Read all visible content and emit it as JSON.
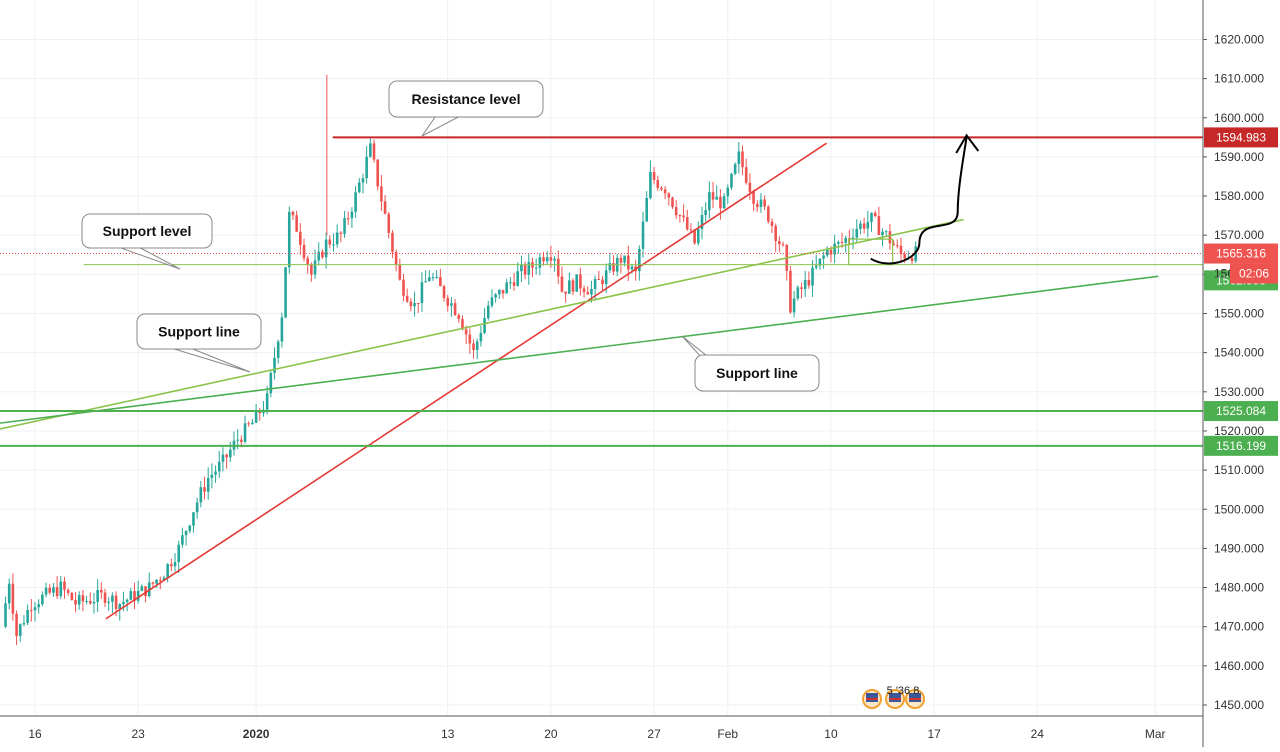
{
  "colors": {
    "up": "#26a69a",
    "down": "#ef5350",
    "resistance": "#c62828",
    "support_green": "#4caf50",
    "support_light": "#8bc34a",
    "trend_red": "#e53935",
    "price_red": "#ef5350",
    "grid": "#edf1f5",
    "axis": "#555555"
  },
  "chart_data": {
    "type": "candlestick",
    "xlabel": "",
    "ylabel": "",
    "ylim": [
      1448,
      1628
    ],
    "y_ticks": [
      "1450.000",
      "1460.000",
      "1470.000",
      "1480.000",
      "1490.000",
      "1500.000",
      "1510.000",
      "1520.000",
      "1530.000",
      "1540.000",
      "1550.000",
      "1560.000",
      "1570.000",
      "1580.000",
      "1590.000",
      "1600.000",
      "1610.000",
      "1620.000"
    ],
    "x_ticks": [
      {
        "label": "16",
        "day": 0
      },
      {
        "label": "23",
        "day": 7
      },
      {
        "label": "2020",
        "day": 15,
        "bold": true
      },
      {
        "label": "13",
        "day": 28
      },
      {
        "label": "20",
        "day": 35
      },
      {
        "label": "27",
        "day": 42
      },
      {
        "label": "Feb",
        "day": 47
      },
      {
        "label": "10",
        "day": 54
      },
      {
        "label": "17",
        "day": 61
      },
      {
        "label": "24",
        "day": 68
      },
      {
        "label": "Mar",
        "day": 76
      }
    ],
    "price_path": [
      [
        -2,
        1470
      ],
      [
        -1.5,
        1482
      ],
      [
        -1,
        1468
      ],
      [
        0,
        1476
      ],
      [
        1,
        1478
      ],
      [
        2,
        1480
      ],
      [
        3,
        1476
      ],
      [
        4,
        1477
      ],
      [
        5,
        1478
      ],
      [
        6,
        1476
      ],
      [
        7,
        1478
      ],
      [
        8,
        1480
      ],
      [
        9,
        1484
      ],
      [
        10,
        1490
      ],
      [
        11,
        1500
      ],
      [
        12,
        1508
      ],
      [
        13,
        1512
      ],
      [
        14,
        1518
      ],
      [
        15,
        1522
      ],
      [
        16,
        1528
      ],
      [
        17,
        1550
      ],
      [
        17.5,
        1575
      ],
      [
        18,
        1572
      ],
      [
        19,
        1560
      ],
      [
        20,
        1568
      ],
      [
        21,
        1570
      ],
      [
        22,
        1580
      ],
      [
        23,
        1592
      ],
      [
        24,
        1575
      ],
      [
        25,
        1558
      ],
      [
        26,
        1552
      ],
      [
        27,
        1560
      ],
      [
        28,
        1555
      ],
      [
        29,
        1550
      ],
      [
        30,
        1540
      ],
      [
        31,
        1552
      ],
      [
        32,
        1556
      ],
      [
        33,
        1560
      ],
      [
        34,
        1562
      ],
      [
        35,
        1566
      ],
      [
        35.5,
        1565
      ],
      [
        36,
        1556
      ],
      [
        37,
        1558
      ],
      [
        38,
        1556
      ],
      [
        39,
        1560
      ],
      [
        40,
        1564
      ],
      [
        41,
        1560
      ],
      [
        42,
        1585
      ],
      [
        43,
        1582
      ],
      [
        44,
        1575
      ],
      [
        45,
        1568
      ],
      [
        46,
        1580
      ],
      [
        47,
        1578
      ],
      [
        48,
        1590
      ],
      [
        49,
        1580
      ],
      [
        50,
        1575
      ],
      [
        51,
        1566
      ],
      [
        51.5,
        1552
      ],
      [
        52,
        1555
      ],
      [
        53,
        1560
      ],
      [
        54,
        1566
      ],
      [
        55,
        1568
      ],
      [
        56,
        1572
      ],
      [
        57,
        1574
      ],
      [
        58,
        1570
      ],
      [
        59,
        1565
      ],
      [
        59.8,
        1565.3
      ]
    ],
    "annotations": {
      "resistance_level": {
        "label": "Resistance level",
        "price": 1594.983,
        "badge": "1594.983"
      },
      "support_level": {
        "label": "Support level"
      },
      "support_line_1": {
        "label": "Support line"
      },
      "support_line_2": {
        "label": "Support line"
      },
      "price_badge": "1565.316",
      "countdown_badge": "02:06",
      "level_badge_1": "1562.555",
      "level_badge_2": "1525.084",
      "level_badge_3": "1516.199",
      "axis_partial": "156",
      "events_text": "5 '36 8"
    },
    "grid": true
  }
}
